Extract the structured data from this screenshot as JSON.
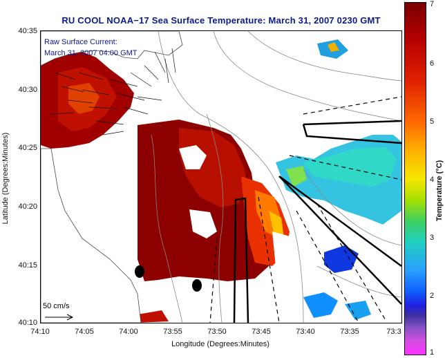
{
  "title": "RU COOL  NOAA−17  Sea Surface Temperature:  March 31, 2007 0230 GMT",
  "legend": {
    "line1": "Raw Surface Current:",
    "line2": "March 31, 2007 04:00 GMT"
  },
  "scale_label": "50 cm/s",
  "axes": {
    "xlabel": "Longitude (Degrees:Minutes)",
    "ylabel": "Latitude (Degrees:Minutes)",
    "xticks": [
      "74:10",
      "74:05",
      "74:00",
      "73:55",
      "73:50",
      "73:45",
      "73:40",
      "73:35",
      "73:3"
    ],
    "yticks": [
      "40:35",
      "40:30",
      "40:25",
      "40:20",
      "40:15",
      "40:10"
    ]
  },
  "colorbar": {
    "label": "Temperature (°C)",
    "ticks": [
      "7",
      "6",
      "5",
      "4",
      "3",
      "2",
      "1"
    ]
  }
}
